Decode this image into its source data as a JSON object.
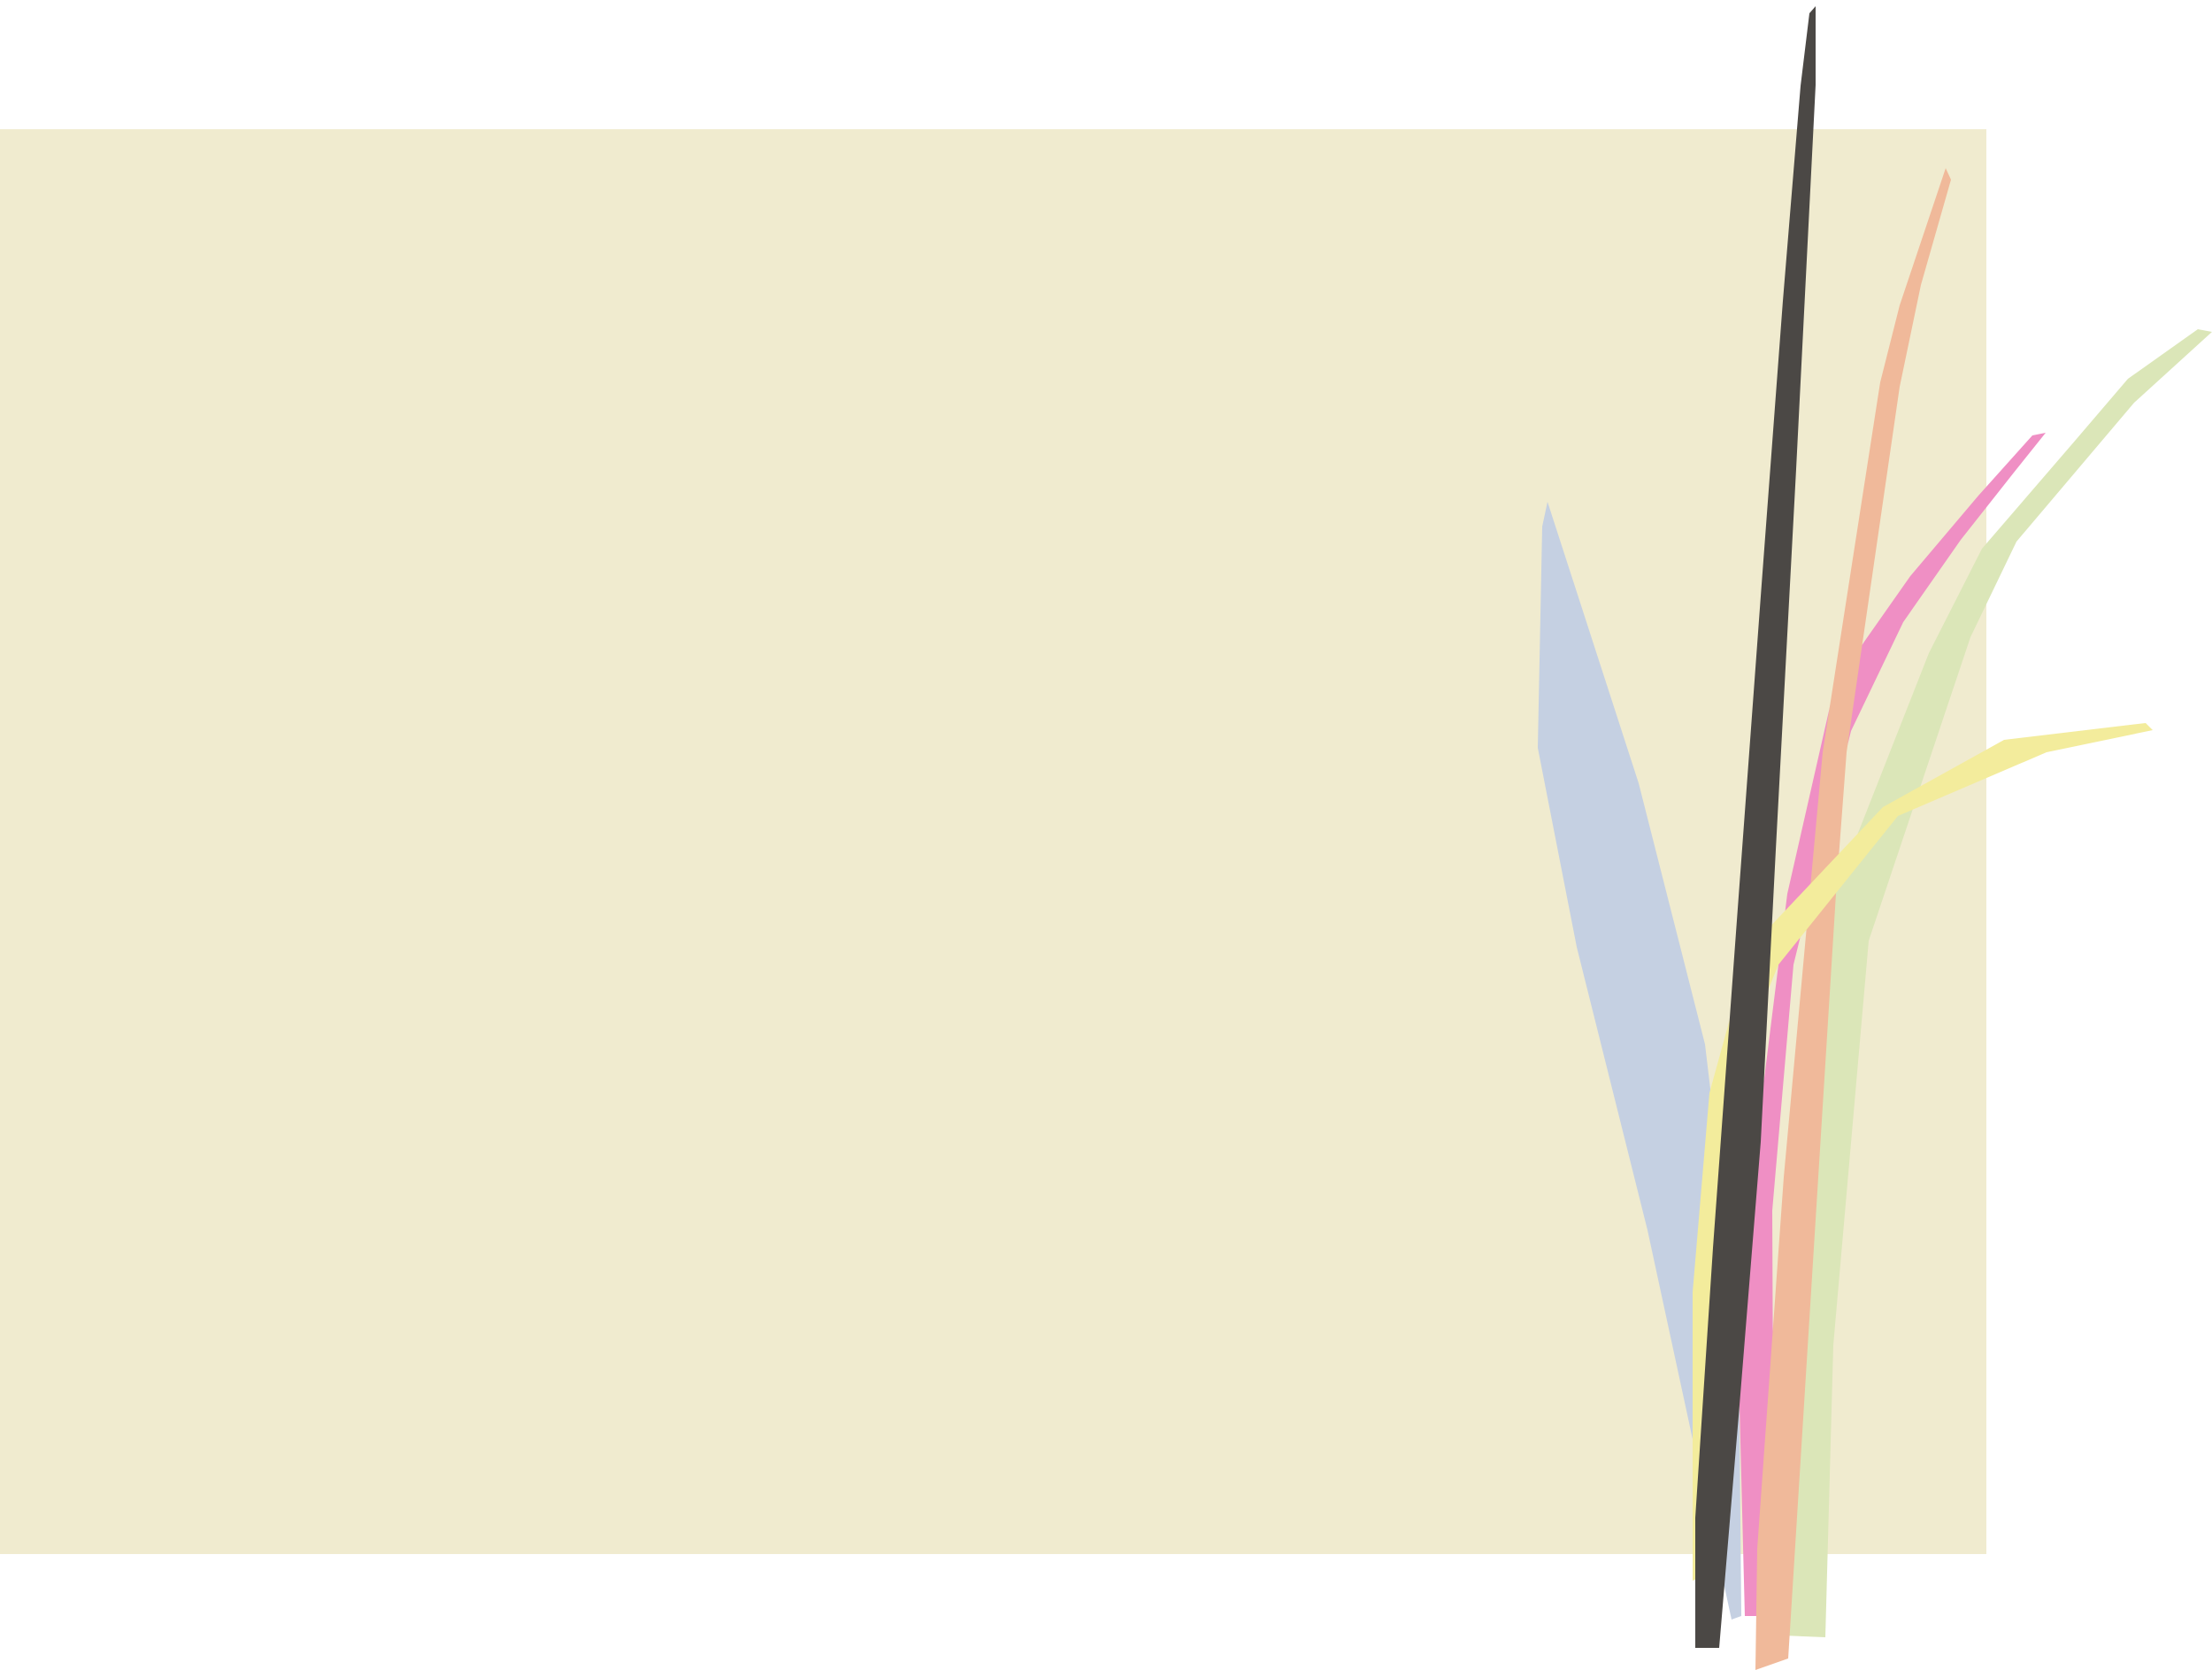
{
  "colors": {
    "background": "#ffffff",
    "panel": "#f0ebcf",
    "blade_blue": "#c5d0e2",
    "blade_green": "#dbe6b8",
    "blade_pink": "#ef8fc4",
    "blade_peach": "#f0b99a",
    "blade_yellow": "#f3ec9c",
    "blade_dark": "#4b4845"
  },
  "elements": [
    "background-panel",
    "grass-blades-illustration"
  ]
}
